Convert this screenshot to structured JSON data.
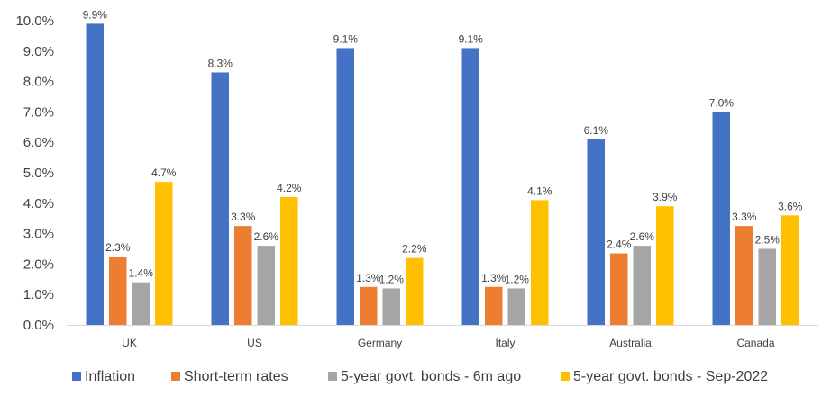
{
  "chart_data": {
    "type": "bar",
    "categories": [
      "UK",
      "US",
      "Germany",
      "Italy",
      "Australia",
      "Canada"
    ],
    "series": [
      {
        "name": "Inflation",
        "color": "#4472C4",
        "values": [
          9.9,
          8.3,
          9.1,
          9.1,
          6.1,
          7.0
        ]
      },
      {
        "name": "Short-term rates",
        "color": "#ED7D31",
        "values": [
          2.25,
          3.25,
          1.25,
          1.25,
          2.35,
          3.25
        ]
      },
      {
        "name": "5-year govt. bonds - 6m ago",
        "color": "#A5A5A5",
        "values": [
          1.4,
          2.6,
          1.2,
          1.2,
          2.6,
          2.5
        ]
      },
      {
        "name": "5-year govt. bonds - Sep-2022",
        "color": "#FFC000",
        "values": [
          4.7,
          4.2,
          2.2,
          4.1,
          3.9,
          3.6
        ]
      }
    ],
    "data_labels": [
      [
        "9.9%",
        "2.3%",
        "1.4%",
        "4.7%"
      ],
      [
        "8.3%",
        "3.3%",
        "2.6%",
        "4.2%"
      ],
      [
        "9.1%",
        "1.3%",
        "1.2%",
        "2.2%"
      ],
      [
        "9.1%",
        "1.3%",
        "1.2%",
        "4.1%"
      ],
      [
        "6.1%",
        "2.4%",
        "2.6%",
        "3.9%"
      ],
      [
        "7.0%",
        "3.3%",
        "2.5%",
        "3.6%"
      ]
    ],
    "y_ticks": [
      "0.0%",
      "1.0%",
      "2.0%",
      "3.0%",
      "4.0%",
      "5.0%",
      "6.0%",
      "7.0%",
      "8.0%",
      "9.0%",
      "10.0%"
    ],
    "ylim": [
      0,
      10
    ],
    "grid": false,
    "legend_position": "bottom"
  }
}
